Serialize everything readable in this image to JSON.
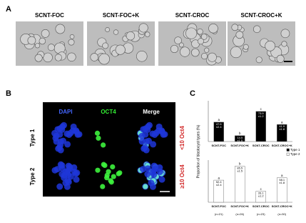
{
  "panel_a": {
    "label": "A",
    "columns": [
      "SCNT-FOC",
      "SCNT-FOC+K",
      "SCNT-CROC",
      "SCNT-CROC+K"
    ]
  },
  "panel_b": {
    "label": "B",
    "channels": [
      "DAPI",
      "OCT4",
      "Merge"
    ],
    "rows": [
      "Type 1",
      "Type 2"
    ],
    "row_notes": [
      "<10 Oct4",
      "≥10 Oct4"
    ]
  },
  "chart_data": {
    "type": "bar",
    "label": "C",
    "ylabel": "Proportion of blastocyst types (%)",
    "categories": [
      "SCNT-FOC",
      "SCNT-FOC+K",
      "SCNT-CROC",
      "SCNT-CROC+K"
    ],
    "sample_sizes": [
      "(n=21)",
      "(n=26)",
      "(n=23)",
      "(n=30)"
    ],
    "ylim": [
      0,
      100
    ],
    "series": [
      {
        "name": "Type 1",
        "color": "#000000",
        "values": [
          47.6,
          14.5,
          73.9,
          41.9
        ],
        "error_labels": [
          "±2.4",
          "±1.5",
          "±1.2",
          "±1.8"
        ],
        "letters": [
          "a",
          "b",
          "c",
          "a"
        ]
      },
      {
        "name": "Type 2",
        "color": "#ffffff",
        "values": [
          52.4,
          85.5,
          26.1,
          58.1
        ],
        "error_labels": [
          "±2.4",
          "±1.5",
          "±1.2",
          "±1.8"
        ],
        "letters": [
          "a",
          "b",
          "c",
          "a"
        ]
      }
    ]
  }
}
